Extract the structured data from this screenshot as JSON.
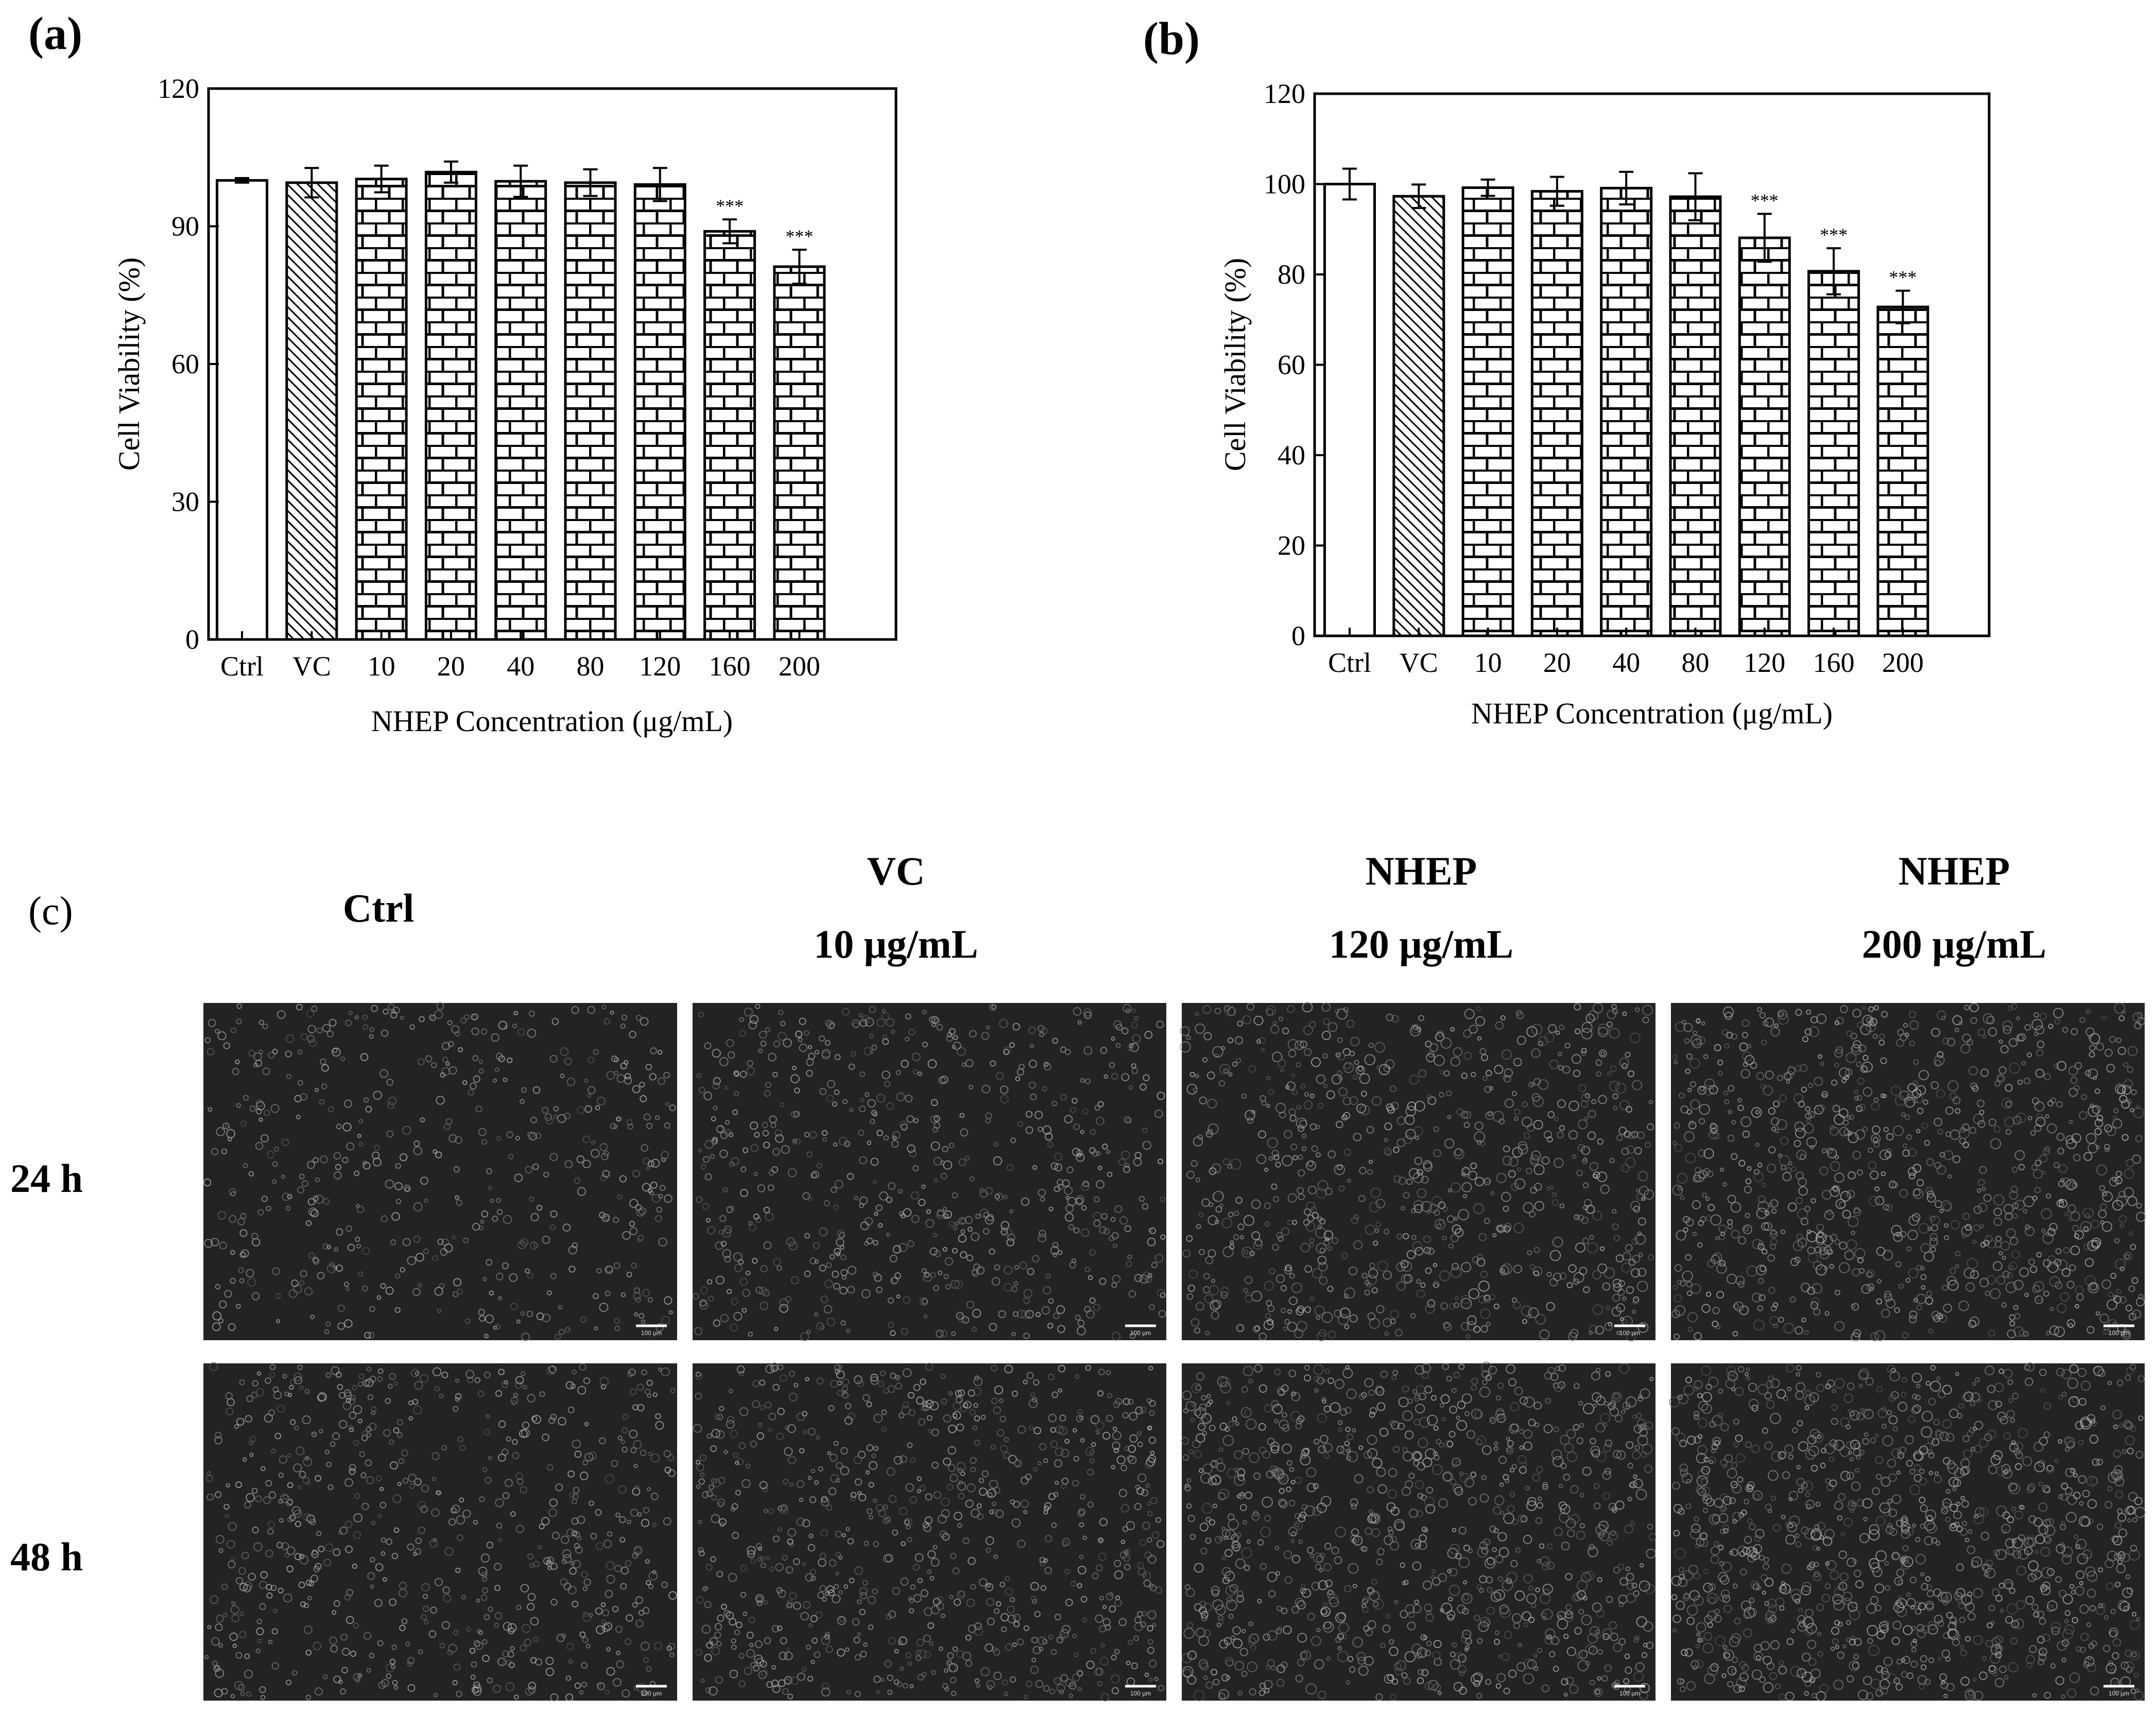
{
  "colors": {
    "bar_stroke": "#000000",
    "bar_fill": "#ffffff",
    "micro_background": "#232323",
    "cell_color": "#9a9a9a"
  },
  "panel_c": {
    "label": "(c)",
    "columns": [
      {
        "line1": "Ctrl",
        "line2": ""
      },
      {
        "line1": "VC",
        "line2": "10 μg/mL"
      },
      {
        "line1": "NHEP",
        "line2": "120 μg/mL"
      },
      {
        "line1": "NHEP",
        "line2": "200 μg/mL"
      }
    ],
    "rows": [
      "24 h",
      "48 h"
    ],
    "scale_bar_label": "100 μm"
  },
  "chart_data": [
    {
      "panel": "(a)",
      "type": "bar",
      "categories": [
        "Ctrl",
        "VC",
        "10",
        "20",
        "40",
        "80",
        "120",
        "160",
        "200"
      ],
      "values": [
        100,
        99.5,
        100.3,
        101.8,
        99.8,
        99.5,
        99.1,
        88.9,
        81.2
      ],
      "errors": [
        0.5,
        3.2,
        2.9,
        2.3,
        3.4,
        2.9,
        3.6,
        2.6,
        3.7
      ],
      "patterns": [
        "blank",
        "hatch",
        "brick",
        "brick",
        "brick",
        "brick",
        "brick",
        "brick",
        "brick"
      ],
      "significance": [
        "",
        "",
        "",
        "",
        "",
        "",
        "",
        "***",
        "***"
      ],
      "xlabel": "NHEP Concentration (μg/mL)",
      "ylabel": "Cell Viability (%)",
      "ylim": [
        0,
        120
      ],
      "yticks": [
        0,
        30,
        60,
        90,
        120
      ],
      "grid": false
    },
    {
      "panel": "(b)",
      "type": "bar",
      "categories": [
        "Ctrl",
        "VC",
        "10",
        "20",
        "40",
        "80",
        "120",
        "160",
        "200"
      ],
      "values": [
        100,
        97.3,
        99.2,
        98.4,
        99.1,
        97.2,
        88.1,
        80.7,
        72.8
      ],
      "errors": [
        3.4,
        2.6,
        1.8,
        3.2,
        3.6,
        5.2,
        5.3,
        5.1,
        3.6
      ],
      "patterns": [
        "blank",
        "hatch",
        "brick",
        "brick",
        "brick",
        "brick",
        "brick",
        "brick",
        "brick"
      ],
      "significance": [
        "",
        "",
        "",
        "",
        "",
        "",
        "***",
        "***",
        "***"
      ],
      "xlabel": "NHEP Concentration (μg/mL)",
      "ylabel": "Cell Viability (%)",
      "ylim": [
        0,
        120
      ],
      "yticks": [
        0,
        20,
        40,
        60,
        80,
        100,
        120
      ],
      "grid": false
    }
  ]
}
